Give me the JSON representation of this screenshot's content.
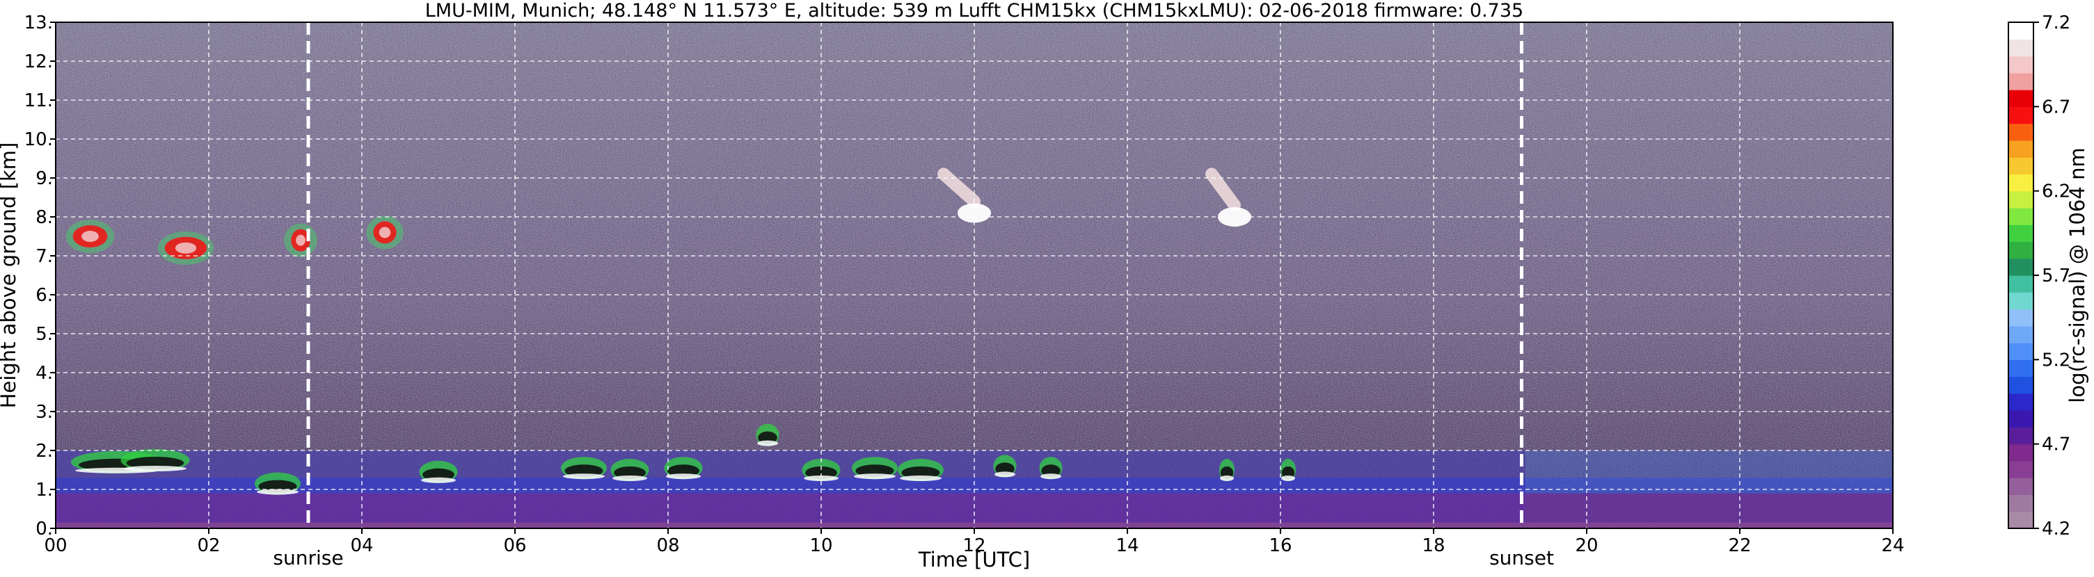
{
  "chart_data": {
    "type": "heatmap",
    "title": "LMU-MIM, Munich; 48.148° N 11.573° E, altitude: 539 m    Lufft CHM15kx (CHM15kxLMU): 02-06-2018    firmware: 0.735",
    "xlabel": "Time [UTC]",
    "ylabel": "Height above ground [km]",
    "colorbar_label": "log(rc-signal) @ 1064 nm",
    "xlim": [
      0,
      24
    ],
    "ylim": [
      0,
      13
    ],
    "x_ticks": [
      0,
      2,
      4,
      6,
      8,
      10,
      12,
      14,
      16,
      18,
      20,
      22,
      24
    ],
    "x_tick_labels": [
      "00",
      "02",
      "04",
      "06",
      "08",
      "10",
      "12",
      "14",
      "16",
      "18",
      "20",
      "22",
      "24"
    ],
    "y_ticks": [
      0,
      1,
      2,
      3,
      4,
      5,
      6,
      7,
      8,
      9,
      10,
      11,
      12,
      13
    ],
    "y_tick_labels": [
      "0.",
      "1.",
      "2.",
      "3.",
      "4.",
      "5.",
      "6.",
      "7.",
      "8.",
      "9.",
      "10.",
      "11.",
      "12.",
      "13."
    ],
    "grid": true,
    "colorbar": {
      "min": 4.2,
      "max": 7.2,
      "ticks": [
        4.2,
        4.7,
        5.2,
        5.7,
        6.2,
        6.7,
        7.2
      ],
      "tick_labels": [
        "4.2",
        "4.7",
        "5.2",
        "5.7",
        "6.2",
        "6.7",
        "7.2"
      ],
      "colors": [
        "#a98aa6",
        "#9e7aa0",
        "#945f9a",
        "#8a3e93",
        "#7f2a8c",
        "#5a1e9a",
        "#3a18b0",
        "#2a28c8",
        "#2050e0",
        "#3070f0",
        "#5090f8",
        "#70a8f8",
        "#90c0f8",
        "#70d8d0",
        "#40c0a0",
        "#209060",
        "#30b040",
        "#40d040",
        "#80e840",
        "#c8f040",
        "#f8f040",
        "#f8c830",
        "#f8a020",
        "#f86010",
        "#f81010",
        "#e80008",
        "#f0a0a0",
        "#f4c8c8",
        "#f0e4e4",
        "#ffffff"
      ]
    },
    "events": [
      {
        "label": "sunrise",
        "x": 3.3
      },
      {
        "label": "sunset",
        "x": 19.15
      }
    ]
  }
}
